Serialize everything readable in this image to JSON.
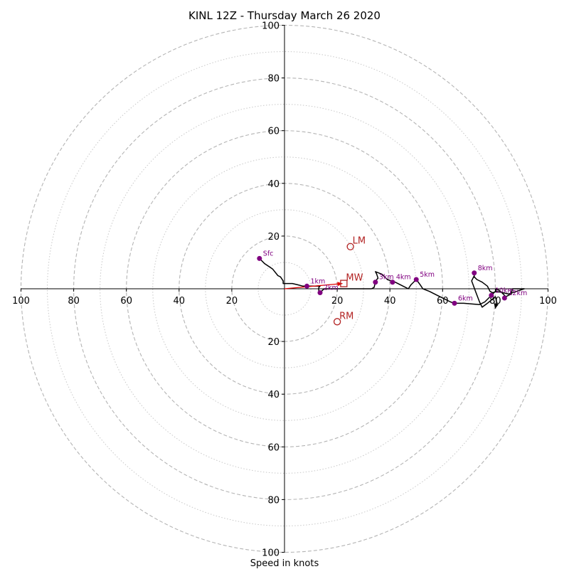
{
  "chart_data": {
    "type": "hodograph",
    "title": "KINL 12Z - Thursday March 26 2020",
    "xlabel": "Speed in knots",
    "units": "knots",
    "range": [
      -100,
      100
    ],
    "major_rings": [
      20,
      40,
      60,
      80,
      100
    ],
    "minor_rings": [
      10,
      30,
      50,
      70,
      90
    ],
    "axis_tick_labels": [
      "20",
      "40",
      "60",
      "80",
      "100"
    ],
    "hodograph_trace": [
      [
        -9.5,
        11.5
      ],
      [
        -7.5,
        9.5
      ],
      [
        -4.5,
        7.5
      ],
      [
        -2.5,
        5
      ],
      [
        -1.5,
        4.5
      ],
      [
        -0.5,
        3
      ],
      [
        -0.5,
        2
      ],
      [
        1,
        2
      ],
      [
        3,
        2
      ],
      [
        5,
        1.5
      ],
      [
        7,
        1
      ],
      [
        8.5,
        1
      ],
      [
        11,
        1
      ],
      [
        13.5,
        1
      ],
      [
        13,
        0.5
      ],
      [
        13,
        -2
      ],
      [
        14,
        -1
      ],
      [
        15,
        0
      ],
      [
        16,
        0
      ],
      [
        20,
        0
      ],
      [
        25,
        0
      ],
      [
        30,
        0
      ],
      [
        33,
        0
      ],
      [
        34,
        0.5
      ],
      [
        34.5,
        2.5
      ],
      [
        35,
        3.5
      ],
      [
        35.5,
        4
      ],
      [
        35,
        5.5
      ],
      [
        34.5,
        6.5
      ],
      [
        37,
        5.5
      ],
      [
        39,
        3.5
      ],
      [
        40.5,
        3
      ],
      [
        42,
        2.5
      ],
      [
        45,
        1
      ],
      [
        47,
        0
      ],
      [
        48,
        1.5
      ],
      [
        49.5,
        3
      ],
      [
        50,
        3.5
      ],
      [
        51.5,
        1.5
      ],
      [
        52.5,
        0
      ],
      [
        55,
        -1
      ],
      [
        58,
        -2.5
      ],
      [
        61,
        -4
      ],
      [
        63,
        -5
      ],
      [
        64.5,
        -5.5
      ],
      [
        68,
        -5.5
      ],
      [
        74,
        -6
      ],
      [
        76,
        -5
      ],
      [
        78,
        -3
      ],
      [
        80,
        -1
      ],
      [
        80.5,
        0
      ],
      [
        82,
        -1
      ],
      [
        84,
        -3
      ],
      [
        86,
        -2
      ],
      [
        86.5,
        0
      ],
      [
        88,
        0
      ],
      [
        91,
        0
      ],
      [
        88,
        -1
      ],
      [
        85,
        -2
      ],
      [
        83,
        -1.5
      ],
      [
        80.5,
        -1
      ],
      [
        79,
        -1.5
      ],
      [
        78,
        -1
      ],
      [
        77,
        1
      ],
      [
        75,
        2.5
      ],
      [
        73,
        3.5
      ],
      [
        72,
        4.5
      ],
      [
        72,
        6
      ],
      [
        72,
        5
      ],
      [
        71,
        3
      ],
      [
        72.5,
        -1
      ],
      [
        74,
        -5
      ],
      [
        75,
        -7
      ],
      [
        77,
        -5.5
      ],
      [
        80,
        -3
      ],
      [
        80.5,
        -5
      ],
      [
        80,
        -7.5
      ]
    ],
    "height_markers": [
      {
        "label": "Sfc",
        "u": -9.5,
        "v": 11.5
      },
      {
        "label": "1km",
        "u": 8.5,
        "v": 1
      },
      {
        "label": "2km",
        "u": 13.5,
        "v": -1.5
      },
      {
        "label": "3km",
        "u": 34.5,
        "v": 2.5
      },
      {
        "label": "4km",
        "u": 41,
        "v": 2.5
      },
      {
        "label": "5km",
        "u": 50,
        "v": 3.5
      },
      {
        "label": "6km",
        "u": 64.5,
        "v": -5.5
      },
      {
        "label": "8km",
        "u": 72,
        "v": 6
      },
      {
        "label": "10km",
        "u": 78.5,
        "v": -2.5
      },
      {
        "label": "12km",
        "u": 83.5,
        "v": -3.5
      }
    ],
    "storm_motions": [
      {
        "label": "LM",
        "u": 25,
        "v": 16
      },
      {
        "label": "MW",
        "u": 22.5,
        "v": 2
      },
      {
        "label": "RM",
        "u": 20,
        "v": -12.5
      }
    ],
    "shear_vector": {
      "from": [
        0,
        0
      ],
      "to": [
        22,
        2
      ]
    }
  }
}
